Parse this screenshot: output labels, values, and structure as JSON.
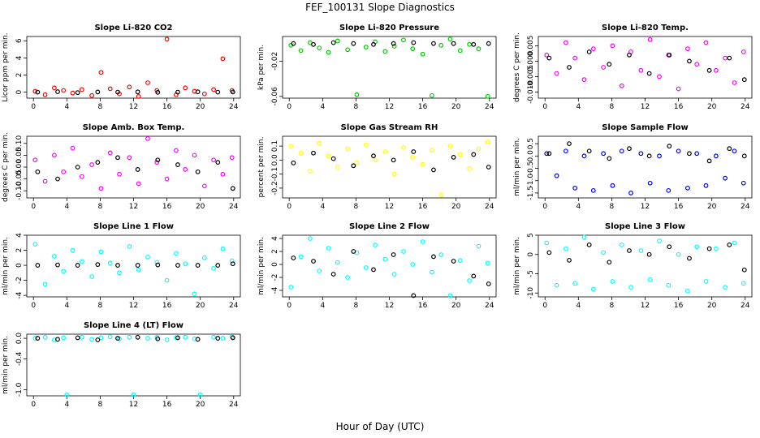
{
  "title": "FEF_100131  Slope Diagnostics",
  "xlabel": "Hour of Day (UTC)",
  "chart_data": [
    {
      "type": "scatter",
      "title": "Slope Li-820 CO2",
      "ylabel": "Licor ppm per min.",
      "xlim": [
        -0.8,
        24.8
      ],
      "xticks": [
        0,
        4,
        8,
        12,
        16,
        20,
        24
      ],
      "ylim": [
        -0.7,
        6.5
      ],
      "yticks": [
        0,
        2,
        4,
        6
      ],
      "series": [
        {
          "color": "#ff0000",
          "x": [
            0.2,
            1.4,
            2.5,
            3.6,
            4.7,
            5.8,
            7.0,
            8.1,
            9.2,
            10.3,
            11.5,
            12.6,
            13.7,
            14.8,
            16.0,
            17.1,
            18.2,
            19.3,
            20.5,
            21.6,
            22.7,
            23.8
          ],
          "y": [
            0.1,
            -0.3,
            0.5,
            0.2,
            -0.1,
            0.3,
            -0.4,
            2.3,
            0.4,
            -0.2,
            0.6,
            -0.5,
            1.1,
            0.2,
            6.2,
            -0.3,
            0.5,
            0.1,
            -0.2,
            0.3,
            3.9,
            0.2
          ]
        },
        {
          "color": "#000000",
          "x": [
            0.5,
            2.9,
            5.3,
            7.7,
            10.1,
            12.5,
            14.9,
            17.3,
            19.7,
            22.1,
            23.9
          ],
          "y": [
            0.0,
            0.05,
            -0.05,
            0.02,
            0.0,
            0.03,
            -0.02,
            0.0,
            0.04,
            0.0,
            0.02
          ]
        }
      ]
    },
    {
      "type": "scatter",
      "title": "Slope Li-820 Pressure",
      "ylabel": "kPa per min.",
      "xlim": [
        -0.8,
        24.8
      ],
      "xticks": [
        0,
        4,
        8,
        12,
        16,
        20,
        24
      ],
      "ylim": [
        -0.062,
        0.008
      ],
      "yticks": [
        -0.06,
        -0.02
      ],
      "series": [
        {
          "color": "#00cc00",
          "x": [
            0.2,
            1.4,
            2.5,
            3.6,
            4.7,
            5.8,
            7.0,
            8.1,
            9.2,
            10.3,
            11.5,
            12.6,
            13.7,
            14.8,
            16.0,
            17.1,
            18.2,
            19.3,
            20.5,
            21.6,
            22.7,
            23.8
          ],
          "y": [
            -0.002,
            -0.008,
            0.001,
            -0.005,
            -0.01,
            0.003,
            -0.007,
            -0.058,
            -0.004,
            0.002,
            -0.009,
            -0.003,
            0.004,
            -0.006,
            -0.012,
            -0.059,
            -0.002,
            0.005,
            -0.008,
            -0.001,
            -0.006,
            -0.06
          ]
        },
        {
          "color": "#000000",
          "x": [
            0.5,
            2.9,
            5.3,
            7.7,
            10.1,
            12.5,
            14.9,
            17.3,
            19.7,
            22.1,
            23.9
          ],
          "y": [
            0,
            -0.001,
            0.001,
            0,
            -0.001,
            0,
            0.001,
            0,
            0,
            -0.001,
            0
          ]
        }
      ]
    },
    {
      "type": "scatter",
      "title": "Slope Li-820 Temp.",
      "ylabel": "degrees C per min.",
      "xlim": [
        -0.8,
        24.8
      ],
      "xticks": [
        0,
        4,
        8,
        12,
        16,
        20,
        24
      ],
      "ylim": [
        -0.012,
        0.008
      ],
      "yticks": [
        {
          "value": -0.01,
          "label": "-0.010"
        },
        {
          "value": -0.005,
          "label": "-0.005"
        },
        {
          "value": 0,
          "label": "0.000"
        },
        {
          "value": 0.005,
          "label": "0.005"
        }
      ],
      "series": [
        {
          "color": "#ff00ff",
          "x": [
            0.2,
            1.4,
            2.5,
            3.6,
            4.7,
            5.8,
            7.0,
            8.1,
            9.2,
            10.3,
            11.5,
            12.6,
            13.7,
            14.8,
            16.0,
            17.1,
            18.2,
            19.3,
            20.5,
            21.6,
            22.7,
            23.8
          ],
          "y": [
            0.002,
            -0.004,
            0.006,
            0.001,
            -0.006,
            0.004,
            -0.002,
            0.005,
            -0.008,
            0.003,
            -0.003,
            0.007,
            -0.005,
            0.002,
            -0.009,
            0.004,
            -0.001,
            0.006,
            -0.003,
            0.001,
            -0.007,
            0.003
          ]
        },
        {
          "color": "#000000",
          "x": [
            0.5,
            2.9,
            5.3,
            7.7,
            10.1,
            12.5,
            14.9,
            17.3,
            19.7,
            22.1,
            23.9
          ],
          "y": [
            0.001,
            -0.002,
            0.003,
            -0.001,
            0.002,
            -0.004,
            0.002,
            0,
            -0.003,
            0.001,
            -0.006
          ]
        }
      ]
    },
    {
      "type": "scatter",
      "title": "Slope Amb. Box Temp.",
      "ylabel": "degrees C per min.",
      "xlim": [
        -0.8,
        24.8
      ],
      "xticks": [
        0,
        4,
        8,
        12,
        16,
        20,
        24
      ],
      "ylim": [
        -0.13,
        0.13
      ],
      "yticks": [
        {
          "value": -0.1,
          "label": "-0.10"
        },
        {
          "value": -0.05,
          "label": "-0.05"
        },
        {
          "value": 0,
          "label": "0.00"
        },
        {
          "value": 0.05,
          "label": "0.05"
        },
        {
          "value": 0.1,
          "label": "0.10"
        }
      ],
      "series": [
        {
          "color": "#ff00ff",
          "x": [
            0.2,
            1.4,
            2.5,
            3.6,
            4.7,
            5.8,
            7.0,
            8.1,
            9.2,
            10.3,
            11.5,
            12.6,
            13.7,
            14.8,
            16.0,
            17.1,
            18.2,
            19.3,
            20.5,
            21.6,
            22.7,
            23.8
          ],
          "y": [
            0.03,
            -0.06,
            0.05,
            -0.02,
            0.08,
            -0.04,
            0.01,
            -0.09,
            0.06,
            -0.03,
            0.04,
            -0.07,
            0.12,
            0.02,
            -0.05,
            0.07,
            -0.01,
            0.05,
            -0.08,
            0.03,
            -0.03,
            0.04
          ]
        },
        {
          "color": "#000000",
          "x": [
            0.5,
            2.9,
            5.3,
            7.7,
            10.1,
            12.5,
            14.9,
            17.3,
            19.7,
            22.1,
            23.9
          ],
          "y": [
            -0.02,
            -0.05,
            0,
            0.02,
            0.04,
            -0.01,
            0.03,
            0.01,
            -0.02,
            0.02,
            -0.09
          ]
        }
      ]
    },
    {
      "type": "scatter",
      "title": "Slope Gas Stream RH",
      "ylabel": "percent per min.",
      "xlim": [
        -0.8,
        24.8
      ],
      "xticks": [
        0,
        4,
        8,
        12,
        16,
        20,
        24
      ],
      "ylim": [
        -0.27,
        0.17
      ],
      "yticks": [
        -0.2,
        -0.1,
        {
          "value": 0,
          "label": "0.0"
        },
        0.1
      ],
      "series": [
        {
          "color": "#ffff00",
          "x": [
            0.2,
            1.4,
            2.5,
            3.6,
            4.7,
            5.8,
            7.0,
            8.1,
            9.2,
            10.3,
            11.5,
            12.6,
            13.7,
            14.8,
            16.0,
            17.1,
            18.2,
            19.3,
            20.5,
            21.6,
            22.7,
            23.8
          ],
          "y": [
            0.1,
            0.05,
            -0.08,
            0.12,
            0.03,
            -0.05,
            0.08,
            -0.02,
            0.11,
            0,
            0.06,
            -0.1,
            0.09,
            0.02,
            -0.03,
            0.07,
            -0.25,
            0.1,
            0.04,
            -0.06,
            0.08,
            0.13
          ]
        },
        {
          "color": "#000000",
          "x": [
            0.5,
            2.9,
            5.3,
            7.7,
            10.1,
            12.5,
            14.9,
            17.3,
            19.7,
            22.1,
            23.9
          ],
          "y": [
            -0.02,
            0.05,
            0.01,
            -0.04,
            0.03,
            0,
            0.06,
            -0.07,
            0.02,
            0.04,
            -0.05
          ]
        }
      ]
    },
    {
      "type": "scatter",
      "title": "Slope Sample Flow",
      "ylabel": "ml/min per min.",
      "xlim": [
        -0.8,
        24.8
      ],
      "xticks": [
        0,
        4,
        8,
        12,
        16,
        20,
        24
      ],
      "ylim": [
        -1.7,
        0.8
      ],
      "yticks": [
        -1.5,
        {
          "value": -1,
          "label": "-1.0"
        },
        -0.5,
        {
          "value": 0,
          "label": "0.0"
        },
        0.5
      ],
      "series": [
        {
          "color": "#0000ff",
          "x": [
            0.2,
            1.4,
            2.5,
            3.6,
            4.7,
            5.8,
            7.0,
            8.1,
            9.2,
            10.3,
            11.5,
            12.6,
            13.7,
            14.8,
            16.0,
            17.1,
            18.2,
            19.3,
            20.5,
            21.6,
            22.7,
            23.8
          ],
          "y": [
            0.1,
            -0.8,
            0.2,
            -1.3,
            0,
            -1.4,
            0.1,
            -1.2,
            0.2,
            -1.5,
            0.1,
            -1.1,
            0,
            -1.4,
            0.2,
            -1.3,
            0.1,
            -1.2,
            0,
            -0.9,
            0.2,
            -1.1
          ]
        },
        {
          "color": "#000000",
          "x": [
            0.5,
            2.9,
            5.3,
            7.7,
            10.1,
            12.5,
            14.9,
            17.3,
            19.7,
            22.1,
            23.9
          ],
          "y": [
            0.1,
            0.5,
            0.2,
            -0.1,
            0.3,
            0,
            0.4,
            0.1,
            -0.2,
            0.3,
            0
          ]
        }
      ]
    },
    {
      "type": "scatter",
      "title": "Slope Line 1 Flow",
      "ylabel": "ml/min per min.",
      "xlim": [
        -0.8,
        24.8
      ],
      "xticks": [
        0,
        4,
        8,
        12,
        16,
        20,
        24
      ],
      "ylim": [
        -4.2,
        4
      ],
      "yticks": [
        -4,
        -2,
        0,
        2,
        4
      ],
      "series": [
        {
          "color": "#00ffff",
          "x": [
            0.2,
            1.4,
            2.5,
            3.6,
            4.7,
            5.8,
            7.0,
            8.1,
            9.2,
            10.3,
            11.5,
            12.6,
            13.7,
            14.8,
            16.0,
            17.1,
            18.2,
            19.3,
            20.5,
            21.6,
            22.7,
            23.8
          ],
          "y": [
            2.8,
            -2.5,
            1.2,
            -0.8,
            2,
            0.5,
            -1.5,
            1.8,
            0.3,
            -1,
            2.5,
            -0.6,
            1.1,
            0.4,
            -2,
            1.6,
            0.2,
            -3.8,
            1,
            -0.4,
            2.2,
            0.6
          ]
        },
        {
          "color": "#000000",
          "x": [
            0.5,
            2.9,
            5.3,
            7.7,
            10.1,
            12.5,
            14.9,
            17.3,
            19.7,
            22.1,
            23.9
          ],
          "y": [
            0,
            0.05,
            0,
            0.1,
            0,
            0,
            0.05,
            0,
            0,
            0,
            0.2
          ]
        }
      ]
    },
    {
      "type": "scatter",
      "title": "Slope Line 2 Flow",
      "ylabel": "ml/min per min.",
      "xlim": [
        -0.8,
        24.8
      ],
      "xticks": [
        0,
        4,
        8,
        12,
        16,
        20,
        24
      ],
      "ylim": [
        -5,
        4.5
      ],
      "yticks": [
        -4,
        -2,
        0,
        2,
        4
      ],
      "series": [
        {
          "color": "#00ffff",
          "x": [
            0.2,
            1.4,
            2.5,
            3.6,
            4.7,
            5.8,
            7.0,
            8.1,
            9.2,
            10.3,
            11.5,
            12.6,
            13.7,
            14.8,
            16.0,
            17.1,
            18.2,
            19.3,
            20.5,
            21.6,
            22.7,
            23.8
          ],
          "y": [
            -3.5,
            1.2,
            4,
            -1,
            2.5,
            0.3,
            -2,
            1.8,
            -0.5,
            3,
            0.8,
            -1.5,
            2,
            0,
            3.5,
            -1.2,
            1.5,
            -4.8,
            0.6,
            -2.5,
            2.8,
            0.2
          ]
        },
        {
          "color": "#000000",
          "x": [
            0.5,
            2.9,
            5.3,
            7.7,
            10.1,
            12.5,
            14.9,
            17.3,
            19.7,
            22.1,
            23.9
          ],
          "y": [
            1,
            0.5,
            -1.5,
            2,
            -0.8,
            1.5,
            -4.8,
            1.2,
            0.5,
            -1.8,
            -3
          ]
        }
      ]
    },
    {
      "type": "scatter",
      "title": "Slope Line 3 Flow",
      "ylabel": "ml/min per min.",
      "xlim": [
        -0.8,
        24.8
      ],
      "xticks": [
        0,
        4,
        8,
        12,
        16,
        20,
        24
      ],
      "ylim": [
        -11,
        5
      ],
      "yticks": [
        -10,
        -5,
        0,
        5
      ],
      "series": [
        {
          "color": "#00ffff",
          "x": [
            0.2,
            1.4,
            2.5,
            3.6,
            4.7,
            5.8,
            7.0,
            8.1,
            9.2,
            10.3,
            11.5,
            12.6,
            13.7,
            14.8,
            16.0,
            17.1,
            18.2,
            19.3,
            20.5,
            21.6,
            22.7,
            23.8
          ],
          "y": [
            3,
            -8,
            1.5,
            -7.5,
            4.5,
            -9,
            0.5,
            -7,
            2.5,
            -8.5,
            1,
            -6.5,
            3.5,
            -8,
            0,
            -9.5,
            2,
            -7,
            1.5,
            -8.5,
            3,
            -7.5
          ]
        },
        {
          "color": "#000000",
          "x": [
            0.5,
            2.9,
            5.3,
            7.7,
            10.1,
            12.5,
            14.9,
            17.3,
            19.7,
            22.1,
            23.9
          ],
          "y": [
            0.5,
            -1.5,
            2.5,
            -2,
            1,
            0,
            2,
            -1,
            1.5,
            2.5,
            -4
          ]
        }
      ]
    },
    {
      "type": "scatter",
      "title": "Slope Line 4 (LT) Flow",
      "ylabel": "ml/min per min.",
      "xlim": [
        -0.8,
        24.8
      ],
      "xticks": [
        0,
        4,
        8,
        12,
        16,
        20,
        24
      ],
      "ylim": [
        -1.12,
        0.08
      ],
      "yticks": [
        {
          "value": -1,
          "label": "-1.0"
        },
        -0.4,
        {
          "value": 0,
          "label": "0.0"
        }
      ],
      "series": [
        {
          "color": "#00ffff",
          "x": [
            0.2,
            1.4,
            2.5,
            3.6,
            4.0,
            5.8,
            7.0,
            8.1,
            9.2,
            10.3,
            11.5,
            12.0,
            13.7,
            14.8,
            16.0,
            17.1,
            18.2,
            19.3,
            20.0,
            21.6,
            22.7,
            23.8
          ],
          "y": [
            0,
            0.02,
            -0.03,
            0.01,
            -1.1,
            0.02,
            -0.02,
            0.01,
            0.03,
            -0.01,
            0.02,
            -1.1,
            0,
            0.02,
            -0.03,
            0.01,
            0.02,
            -0.01,
            -1.1,
            0.02,
            0,
            0.03
          ]
        },
        {
          "color": "#000000",
          "x": [
            0.5,
            2.9,
            5.3,
            7.7,
            10.1,
            12.5,
            14.9,
            17.3,
            19.7,
            22.1,
            23.9
          ],
          "y": [
            0,
            -0.02,
            0.01,
            -0.03,
            0,
            0.02,
            -0.01,
            0.01,
            -0.02,
            0,
            0.01
          ]
        }
      ]
    }
  ]
}
